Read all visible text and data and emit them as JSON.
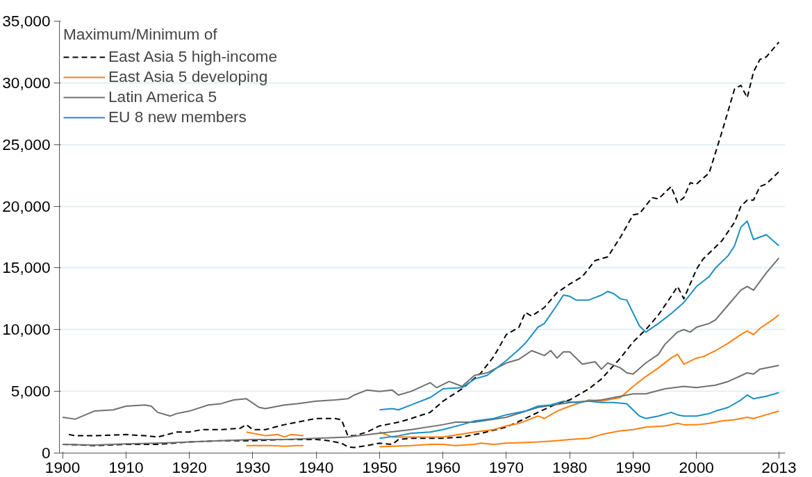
{
  "chart_data": {
    "type": "line",
    "legend_title": "Maximum/Minimum of",
    "legend": "top left",
    "grid": "y",
    "marker": "none",
    "xlim": [
      1899.5,
      2014
    ],
    "ylim": [
      0,
      35000
    ],
    "xticks": [
      1900,
      1910,
      1920,
      1930,
      1940,
      1950,
      1960,
      1970,
      1980,
      1990,
      2000,
      2013
    ],
    "yticks": [
      {
        "value": 0,
        "label": "0"
      },
      {
        "value": 5000,
        "label": "5,000"
      },
      {
        "value": 10000,
        "label": "10,000"
      },
      {
        "value": 15000,
        "label": "15,000"
      },
      {
        "value": 20000,
        "label": "20,000"
      },
      {
        "value": 25000,
        "label": "25,000"
      },
      {
        "value": 30000,
        "label": "30,000"
      },
      {
        "value": 35000,
        "label": "35,000"
      }
    ],
    "series": [
      {
        "name": "East Asia 5 high-income",
        "color": "#000000",
        "line_style": "dashed",
        "x": [
          1901,
          1902,
          1905,
          1910,
          1913,
          1915,
          1918,
          1920,
          1922,
          1925,
          1928,
          1929,
          1930,
          1932,
          1935,
          1937,
          1940,
          1942,
          1943,
          1944,
          1945,
          1946,
          1948,
          1950,
          1953,
          1955,
          1958,
          1960,
          1963,
          1966,
          1968,
          1970,
          1972,
          1973,
          1974,
          1976,
          1978,
          1980,
          1982,
          1984,
          1986,
          1988,
          1990,
          1991,
          1993,
          1994,
          1996,
          1997,
          1998,
          1999,
          2000,
          2002,
          2004,
          2006,
          2007,
          2008,
          2009,
          2010,
          2011,
          2013
        ],
        "values": [
          1500,
          1400,
          1400,
          1500,
          1400,
          1300,
          1700,
          1700,
          1900,
          1900,
          2000,
          2300,
          1900,
          1900,
          2300,
          2500,
          2800,
          2800,
          2800,
          2700,
          1400,
          1400,
          1700,
          2200,
          2500,
          2800,
          3300,
          4200,
          5200,
          6500,
          7800,
          9600,
          10200,
          11400,
          11100,
          11800,
          13000,
          13700,
          14300,
          15600,
          15900,
          17500,
          19300,
          19400,
          20700,
          20600,
          21600,
          20300,
          20700,
          21900,
          21800,
          22700,
          26000,
          29500,
          29800,
          28800,
          30900,
          31900,
          32100,
          33300
        ]
      },
      {
        "color": "#000000",
        "line_style": "dashed",
        "x": [
          1900,
          1903,
          1905,
          1910,
          1915,
          1920,
          1925,
          1930,
          1935,
          1940,
          1942,
          1944,
          1945,
          1946,
          1948,
          1950,
          1952,
          1953,
          1955,
          1960,
          1963,
          1966,
          1970,
          1973,
          1975,
          1978,
          1980,
          1983,
          1985,
          1988,
          1990,
          1992,
          1994,
          1996,
          1997,
          1998,
          2000,
          2001,
          2003,
          2004,
          2006,
          2007,
          2008,
          2009,
          2010,
          2011,
          2013
        ],
        "values": [
          700,
          650,
          600,
          700,
          700,
          900,
          1000,
          1000,
          1100,
          1100,
          1000,
          800,
          500,
          450,
          600,
          800,
          700,
          1100,
          1200,
          1200,
          1300,
          1600,
          2100,
          2800,
          3300,
          4000,
          4300,
          5200,
          6000,
          7700,
          9000,
          10000,
          11200,
          12700,
          13500,
          12500,
          14900,
          15700,
          16700,
          17200,
          18700,
          20000,
          20500,
          20500,
          21600,
          21800,
          22800
        ]
      },
      {
        "name": "East Asia 5 developing",
        "color": "#ff7f0e",
        "x": [
          1929,
          1932,
          1934,
          1935,
          1936,
          1938,
          1939,
          1950,
          1952,
          1955,
          1960,
          1965,
          1968,
          1970,
          1972,
          1975,
          1976,
          1978,
          1980,
          1983,
          1985,
          1988,
          1990,
          1992,
          1994,
          1996,
          1997,
          1998,
          2000,
          2001,
          2003,
          2005,
          2007,
          2008,
          2009,
          2010,
          2012,
          2013
        ],
        "values": [
          1700,
          1400,
          1500,
          1300,
          1500,
          1400,
          null,
          1700,
          1300,
          1300,
          1300,
          1700,
          1900,
          2200,
          2400,
          3000,
          2800,
          3400,
          3800,
          4300,
          4200,
          4500,
          5400,
          6200,
          6900,
          7700,
          8000,
          7200,
          7700,
          7800,
          8300,
          8900,
          9600,
          9900,
          9600,
          10100,
          10800,
          11200
        ]
      },
      {
        "color": "#ff7f0e",
        "x": [
          1929,
          1933,
          1935,
          1937,
          1938,
          1939,
          1950,
          1955,
          1958,
          1960,
          1962,
          1965,
          1966,
          1968,
          1970,
          1975,
          1978,
          1980,
          1983,
          1985,
          1988,
          1990,
          1992,
          1995,
          1997,
          1998,
          2000,
          2002,
          2004,
          2006,
          2008,
          2009,
          2011,
          2013
        ],
        "values": [
          600,
          600,
          550,
          600,
          600,
          null,
          500,
          600,
          700,
          700,
          600,
          700,
          800,
          700,
          800,
          900,
          1000,
          1100,
          1200,
          1500,
          1800,
          1900,
          2100,
          2200,
          2400,
          2300,
          2300,
          2400,
          2600,
          2700,
          2900,
          2800,
          3100,
          3400
        ]
      },
      {
        "name": "Latin America 5",
        "color": "#707070",
        "x": [
          1900,
          1902,
          1905,
          1908,
          1910,
          1913,
          1914,
          1915,
          1917,
          1918,
          1920,
          1923,
          1925,
          1927,
          1929,
          1931,
          1932,
          1935,
          1937,
          1940,
          1943,
          1945,
          1946,
          1948,
          1950,
          1952,
          1953,
          1955,
          1958,
          1959,
          1961,
          1963,
          1965,
          1967,
          1970,
          1972,
          1974,
          1976,
          1977,
          1978,
          1979,
          1980,
          1982,
          1984,
          1985,
          1986,
          1988,
          1989,
          1990,
          1992,
          1994,
          1995,
          1997,
          1998,
          1999,
          2000,
          2002,
          2003,
          2005,
          2007,
          2008,
          2009,
          2011,
          2013
        ],
        "values": [
          2900,
          2750,
          3400,
          3500,
          3800,
          3900,
          3800,
          3300,
          3000,
          3200,
          3400,
          3900,
          4000,
          4300,
          4400,
          3700,
          3600,
          3900,
          4000,
          4200,
          4300,
          4400,
          4700,
          5100,
          5000,
          5100,
          4700,
          5000,
          5700,
          5300,
          5800,
          5400,
          6300,
          6500,
          7300,
          7600,
          8300,
          7900,
          8300,
          7700,
          8200,
          8200,
          7200,
          7400,
          6800,
          7300,
          6900,
          6500,
          6400,
          7300,
          8000,
          8800,
          9800,
          10000,
          9800,
          10200,
          10500,
          10800,
          12000,
          13200,
          13500,
          13200,
          14600,
          15800
        ]
      },
      {
        "color": "#707070",
        "x": [
          1900,
          1905,
          1910,
          1915,
          1920,
          1925,
          1930,
          1935,
          1940,
          1945,
          1950,
          1955,
          1960,
          1962,
          1965,
          1970,
          1975,
          1980,
          1985,
          1990,
          1992,
          1995,
          1998,
          2000,
          2003,
          2005,
          2008,
          2009,
          2010,
          2013
        ],
        "values": [
          700,
          650,
          750,
          800,
          900,
          1000,
          1100,
          1100,
          1200,
          1300,
          1600,
          1900,
          2300,
          2500,
          2500,
          2900,
          3700,
          4100,
          4300,
          4800,
          4800,
          5200,
          5400,
          5300,
          5500,
          5800,
          6500,
          6400,
          6800,
          7100
        ]
      },
      {
        "name": "EU 8 new members",
        "color": "#1a8fc3",
        "x": [
          1950,
          1952,
          1953,
          1955,
          1958,
          1960,
          1963,
          1965,
          1967,
          1970,
          1972,
          1973,
          1975,
          1976,
          1978,
          1979,
          1980,
          1981,
          1983,
          1984,
          1985,
          1986,
          1987,
          1988,
          1989,
          1991,
          1992,
          1994,
          1996,
          1998,
          2000,
          2002,
          2003,
          2005,
          2006,
          2007,
          2008,
          2009,
          2010,
          2011,
          2013
        ],
        "values": [
          3500,
          3600,
          3500,
          3900,
          4500,
          5200,
          5300,
          6000,
          6300,
          7500,
          8400,
          8900,
          10200,
          10500,
          12000,
          12800,
          12700,
          12400,
          12400,
          12600,
          12800,
          13100,
          12900,
          12500,
          12400,
          10300,
          9800,
          10500,
          11300,
          12200,
          13500,
          14300,
          15000,
          16000,
          16800,
          18300,
          18800,
          17300,
          17500,
          17700,
          16800
        ]
      },
      {
        "color": "#1a8fc3",
        "x": [
          1950,
          1953,
          1955,
          1958,
          1960,
          1963,
          1965,
          1968,
          1970,
          1973,
          1975,
          1977,
          1979,
          1981,
          1983,
          1985,
          1987,
          1989,
          1991,
          1992,
          1994,
          1996,
          1997,
          1998,
          2000,
          2002,
          2003,
          2005,
          2007,
          2008,
          2009,
          2011,
          2013
        ],
        "values": [
          1200,
          1400,
          1600,
          1700,
          1900,
          2300,
          2600,
          2800,
          3100,
          3400,
          3800,
          3900,
          4200,
          4100,
          4200,
          4100,
          4100,
          4000,
          3000,
          2800,
          3000,
          3300,
          3100,
          3000,
          3000,
          3200,
          3400,
          3700,
          4300,
          4700,
          4400,
          4600,
          4900
        ]
      }
    ]
  }
}
